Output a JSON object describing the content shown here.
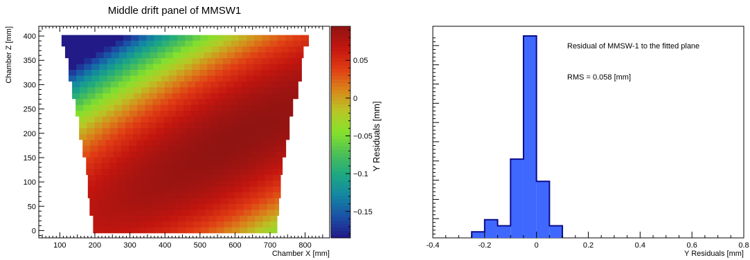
{
  "chart_data": [
    {
      "type": "heatmap",
      "title": "Middle drift panel of MMSW1",
      "xlabel": "Chamber X [mm]",
      "ylabel": "Chamber Z [mm]",
      "zlabel": "Y Residuals [mm]",
      "xlim": [
        40,
        870
      ],
      "ylim": [
        -15,
        420
      ],
      "zlim": [
        -0.185,
        0.095
      ],
      "x_ticks": [
        100,
        200,
        300,
        400,
        500,
        600,
        700,
        800
      ],
      "y_ticks": [
        0,
        50,
        100,
        150,
        200,
        250,
        300,
        350,
        400
      ],
      "z_ticks": [
        -0.15,
        -0.1,
        -0.05,
        0,
        0.05
      ],
      "z_tick_labels": [
        "−0.15",
        "−0.1",
        "−0.05",
        "0",
        "0.05"
      ],
      "colormap": [
        "#221a86",
        "#1b4fa6",
        "#1386a3",
        "#1da882",
        "#4cc056",
        "#86e12c",
        "#b8c726",
        "#d9851a",
        "#e03c14",
        "#c2150f",
        "#901412"
      ],
      "region": {
        "x_left": [
          195,
          185,
          180,
          175,
          165,
          155,
          145,
          135,
          125,
          115,
          105,
          100
        ],
        "x_right": [
          720,
          725,
          730,
          735,
          745,
          755,
          765,
          780,
          790,
          795,
          810,
          835
        ],
        "z_edges": [
          -5,
          30,
          70,
          110,
          150,
          190,
          230,
          270,
          310,
          350,
          375,
          402
        ]
      },
      "surface": {
        "center_x": 620,
        "center_z": 195,
        "peak": 0.095,
        "curvature_x": 4.5e-07,
        "curvature_z": 2.5e-06,
        "twist": -1.8e-06
      }
    },
    {
      "type": "bar",
      "title": "",
      "xlabel": "Y Residuals [mm]",
      "ylabel": "",
      "xlim": [
        -0.4,
        0.8
      ],
      "ylim": [
        0,
        1
      ],
      "x_ticks": [
        -0.4,
        -0.2,
        0,
        0.2,
        0.4,
        0.6,
        0.8
      ],
      "x_tick_labels": [
        "-0.4",
        "-0.2",
        "0",
        "0.2",
        "0.4",
        "0.6",
        "0.8"
      ],
      "bin_edges": [
        -0.25,
        -0.2,
        -0.15,
        -0.1,
        -0.05,
        0,
        0.05,
        0.1
      ],
      "values": [
        0.03,
        0.09,
        0.06,
        0.39,
        1.0,
        0.28,
        0.06
      ],
      "fill_color": "#3f68ff",
      "line_color": "#0a0a8a",
      "annotations": [
        "Residual of MMSW-1 to the fitted plane",
        "RMS = 0.058 [mm]"
      ]
    }
  ]
}
